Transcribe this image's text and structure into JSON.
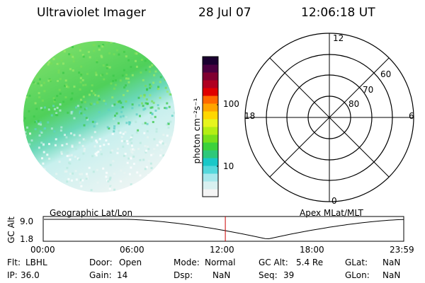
{
  "header": {
    "instrument": "Ultraviolet Imager",
    "date": "28 Jul 07",
    "time": "12:06:18 UT"
  },
  "colorbar": {
    "unit_label": "photon cm⁻²s⁻¹",
    "tick_labels": [
      "100",
      "10"
    ],
    "colors": [
      "#f5f5f5",
      "#d8f0f0",
      "#a8e8ec",
      "#55d8dc",
      "#19c8c8",
      "#2ec87a",
      "#3cd23c",
      "#78e01c",
      "#b4ee14",
      "#e6f51e",
      "#ffd700",
      "#ffa500",
      "#ff6a00",
      "#e00000",
      "#b00020",
      "#800030",
      "#4a0040",
      "#1a0030"
    ]
  },
  "polar_grid": {
    "mlt_labels": [
      "12",
      "18",
      "6",
      "0"
    ],
    "mlat_labels": [
      "60",
      "70",
      "80"
    ]
  },
  "altitude_panel": {
    "left_label": "Geographic Lat/Lon",
    "right_label": "Apex MLat/MLT",
    "axis_label": "GC Alt",
    "y_ticks": [
      "9.0",
      "1.8"
    ],
    "x_ticks": [
      "00:00",
      "06:00",
      "12:00",
      "18:00",
      "23:59"
    ],
    "current_time_hours": 12.1,
    "line_color": "#000000",
    "marker_color": "#cc0000"
  },
  "footer": {
    "row1": [
      {
        "label": "Flt:",
        "value": "LBHL"
      },
      {
        "label": "Door:",
        "value": "Open"
      },
      {
        "label": "Mode:",
        "value": "Normal"
      },
      {
        "label": "GC Alt:",
        "value": "5.4 Re"
      },
      {
        "label": "GLat:",
        "value": "NaN"
      }
    ],
    "row2": [
      {
        "label": "IP:",
        "value": "36.0"
      },
      {
        "label": "Gain:",
        "value": "14"
      },
      {
        "label": "Dsp:",
        "value": "NaN"
      },
      {
        "label": "Seq:",
        "value": "39"
      },
      {
        "label": "GLon:",
        "value": "NaN"
      }
    ]
  }
}
